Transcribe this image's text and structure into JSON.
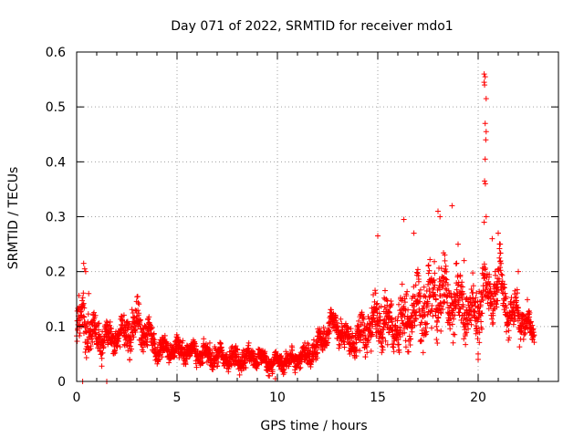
{
  "chart_data": {
    "type": "scatter",
    "title": "Day 071 of 2022, SRMTID for receiver mdo1",
    "xlabel": "GPS time / hours",
    "ylabel": "SRMTID / TECUs",
    "xlim": [
      0,
      24
    ],
    "ylim": [
      0,
      0.6
    ],
    "x_ticks": [
      0,
      5,
      10,
      15,
      20
    ],
    "x_tick_labels": [
      "0",
      "5",
      "10",
      "15",
      "20"
    ],
    "y_ticks": [
      0,
      0.1,
      0.2,
      0.3,
      0.4,
      0.5,
      0.6
    ],
    "y_tick_labels": [
      "0",
      "0.1",
      "0.2",
      "0.3",
      "0.4",
      "0.5",
      "0.6"
    ],
    "grid": true,
    "marker": "plus",
    "color": "#ff0000",
    "series": [
      {
        "name": "mdo1",
        "envelope": {
          "x": [
            0.0,
            0.3,
            0.5,
            1.0,
            1.5,
            2.0,
            2.5,
            3.0,
            3.5,
            4.0,
            5.0,
            6.0,
            7.0,
            8.0,
            9.0,
            9.5,
            10.0,
            11.0,
            12.0,
            12.8,
            13.5,
            14.0,
            14.5,
            15.0,
            16.0,
            17.0,
            17.5,
            18.0,
            18.5,
            19.0,
            19.5,
            20.0,
            20.3,
            20.6,
            21.0,
            21.5,
            22.0,
            22.5,
            22.8
          ],
          "center": [
            0.09,
            0.12,
            0.1,
            0.08,
            0.08,
            0.08,
            0.09,
            0.1,
            0.09,
            0.06,
            0.06,
            0.05,
            0.045,
            0.04,
            0.045,
            0.035,
            0.035,
            0.04,
            0.06,
            0.11,
            0.07,
            0.08,
            0.1,
            0.11,
            0.1,
            0.13,
            0.14,
            0.16,
            0.15,
            0.14,
            0.13,
            0.12,
            0.17,
            0.15,
            0.19,
            0.13,
            0.12,
            0.1,
            0.09
          ],
          "spread": [
            0.05,
            0.06,
            0.05,
            0.04,
            0.04,
            0.03,
            0.04,
            0.05,
            0.04,
            0.025,
            0.025,
            0.025,
            0.025,
            0.025,
            0.025,
            0.02,
            0.02,
            0.025,
            0.03,
            0.03,
            0.035,
            0.04,
            0.05,
            0.06,
            0.06,
            0.07,
            0.08,
            0.08,
            0.07,
            0.07,
            0.06,
            0.06,
            0.07,
            0.06,
            0.06,
            0.05,
            0.05,
            0.04,
            0.03
          ]
        },
        "extra_points": [
          [
            0.3,
            0.0
          ],
          [
            1.5,
            0.0
          ],
          [
            0.35,
            0.215
          ],
          [
            0.4,
            0.205
          ],
          [
            0.45,
            0.2
          ],
          [
            0.6,
            0.16
          ],
          [
            18.0,
            0.31
          ],
          [
            18.1,
            0.3
          ],
          [
            18.7,
            0.32
          ],
          [
            16.3,
            0.295
          ],
          [
            16.8,
            0.27
          ],
          [
            15.0,
            0.265
          ],
          [
            19.0,
            0.25
          ],
          [
            19.3,
            0.22
          ],
          [
            20.0,
            0.04
          ],
          [
            20.0,
            0.05
          ],
          [
            20.3,
            0.56
          ],
          [
            20.35,
            0.555
          ],
          [
            20.3,
            0.545
          ],
          [
            20.32,
            0.54
          ],
          [
            20.4,
            0.515
          ],
          [
            20.35,
            0.47
          ],
          [
            20.4,
            0.455
          ],
          [
            20.38,
            0.44
          ],
          [
            20.35,
            0.405
          ],
          [
            20.32,
            0.365
          ],
          [
            20.36,
            0.36
          ],
          [
            20.4,
            0.3
          ],
          [
            20.3,
            0.29
          ],
          [
            20.7,
            0.26
          ],
          [
            21.0,
            0.27
          ],
          [
            21.1,
            0.25
          ],
          [
            22.0,
            0.2
          ],
          [
            9.6,
            0.01
          ],
          [
            9.9,
            0.005
          ]
        ]
      }
    ]
  }
}
